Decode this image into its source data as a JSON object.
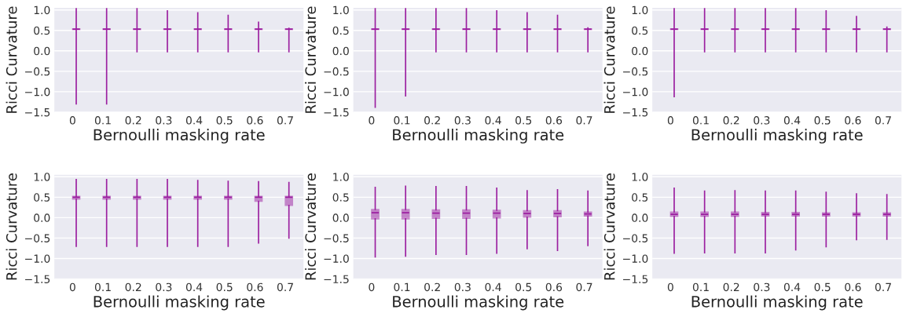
{
  "chart_data": [
    {
      "type": "box",
      "xlabel": "Bernoulli masking rate",
      "ylabel": "Ricci Curvature",
      "categories": [
        "0",
        "0.1",
        "0.2",
        "0.3",
        "0.4",
        "0.5",
        "0.6",
        "0.7"
      ],
      "color": "#9b1fa0",
      "ylim": [
        -1.5,
        1.05
      ],
      "yticks": [
        {
          "value": -1.5,
          "label": "−1.5"
        },
        {
          "value": -1.0,
          "label": "−1.0"
        },
        {
          "value": -0.5,
          "label": "−0.5"
        },
        {
          "value": 0.0,
          "label": "0.0"
        },
        {
          "value": 0.5,
          "label": "0.5"
        },
        {
          "value": 1.0,
          "label": "1.0"
        }
      ],
      "grid": "y",
      "boxes": [
        {
          "low": -1.3,
          "q1": 0.52,
          "median": 0.53,
          "q3": 0.54,
          "high": 1.03
        },
        {
          "low": -1.3,
          "q1": 0.52,
          "median": 0.53,
          "q3": 0.54,
          "high": 1.03
        },
        {
          "low": -0.02,
          "q1": 0.52,
          "median": 0.53,
          "q3": 0.54,
          "high": 1.03
        },
        {
          "low": -0.02,
          "q1": 0.52,
          "median": 0.53,
          "q3": 0.54,
          "high": 0.98
        },
        {
          "low": -0.02,
          "q1": 0.52,
          "median": 0.53,
          "q3": 0.54,
          "high": 0.93
        },
        {
          "low": -0.02,
          "q1": 0.52,
          "median": 0.53,
          "q3": 0.54,
          "high": 0.87
        },
        {
          "low": -0.02,
          "q1": 0.52,
          "median": 0.53,
          "q3": 0.54,
          "high": 0.7
        },
        {
          "low": -0.02,
          "q1": 0.52,
          "median": 0.53,
          "q3": 0.54,
          "high": 0.55
        }
      ]
    },
    {
      "type": "box",
      "xlabel": "Bernoulli masking rate",
      "ylabel": "Ricci Curvature",
      "categories": [
        "0",
        "0.1",
        "0.2",
        "0.3",
        "0.4",
        "0.5",
        "0.6",
        "0.7"
      ],
      "color": "#9b1fa0",
      "ylim": [
        -1.5,
        1.05
      ],
      "yticks": [
        {
          "value": -1.5,
          "label": "−1.5"
        },
        {
          "value": -1.0,
          "label": "−1.0"
        },
        {
          "value": -0.5,
          "label": "−0.5"
        },
        {
          "value": 0.0,
          "label": "0.0"
        },
        {
          "value": 0.5,
          "label": "0.5"
        },
        {
          "value": 1.0,
          "label": "1.0"
        }
      ],
      "grid": "y",
      "boxes": [
        {
          "low": -1.38,
          "q1": 0.52,
          "median": 0.53,
          "q3": 0.54,
          "high": 1.03
        },
        {
          "low": -1.1,
          "q1": 0.52,
          "median": 0.53,
          "q3": 0.54,
          "high": 1.03
        },
        {
          "low": -0.02,
          "q1": 0.52,
          "median": 0.53,
          "q3": 0.54,
          "high": 1.03
        },
        {
          "low": -0.02,
          "q1": 0.52,
          "median": 0.53,
          "q3": 0.54,
          "high": 1.03
        },
        {
          "low": -0.02,
          "q1": 0.52,
          "median": 0.53,
          "q3": 0.54,
          "high": 0.98
        },
        {
          "low": -0.02,
          "q1": 0.52,
          "median": 0.53,
          "q3": 0.54,
          "high": 0.93
        },
        {
          "low": -0.02,
          "q1": 0.52,
          "median": 0.53,
          "q3": 0.54,
          "high": 0.87
        },
        {
          "low": -0.02,
          "q1": 0.52,
          "median": 0.53,
          "q3": 0.54,
          "high": 0.56
        }
      ]
    },
    {
      "type": "box",
      "xlabel": "Bernoulli masking rate",
      "ylabel": "Ricci Curvature",
      "categories": [
        "0",
        "0.1",
        "0.2",
        "0.3",
        "0.4",
        "0.5",
        "0.6",
        "0.7"
      ],
      "color": "#9b1fa0",
      "ylim": [
        -1.5,
        1.05
      ],
      "yticks": [
        {
          "value": -1.5,
          "label": "−1.5"
        },
        {
          "value": -1.0,
          "label": "−1.0"
        },
        {
          "value": -0.5,
          "label": "−0.5"
        },
        {
          "value": 0.0,
          "label": "0.0"
        },
        {
          "value": 0.5,
          "label": "0.5"
        },
        {
          "value": 1.0,
          "label": "1.0"
        }
      ],
      "grid": "y",
      "boxes": [
        {
          "low": -1.12,
          "q1": 0.52,
          "median": 0.53,
          "q3": 0.54,
          "high": 1.03
        },
        {
          "low": -0.02,
          "q1": 0.52,
          "median": 0.53,
          "q3": 0.54,
          "high": 1.03
        },
        {
          "low": -0.02,
          "q1": 0.52,
          "median": 0.53,
          "q3": 0.54,
          "high": 1.03
        },
        {
          "low": -0.02,
          "q1": 0.52,
          "median": 0.53,
          "q3": 0.54,
          "high": 1.03
        },
        {
          "low": -0.02,
          "q1": 0.52,
          "median": 0.53,
          "q3": 0.54,
          "high": 1.03
        },
        {
          "low": -0.02,
          "q1": 0.52,
          "median": 0.53,
          "q3": 0.54,
          "high": 0.98
        },
        {
          "low": -0.02,
          "q1": 0.52,
          "median": 0.53,
          "q3": 0.54,
          "high": 0.84
        },
        {
          "low": -0.02,
          "q1": 0.52,
          "median": 0.53,
          "q3": 0.54,
          "high": 0.58
        }
      ]
    },
    {
      "type": "box",
      "xlabel": "Bernoulli masking rate",
      "ylabel": "Ricci Curvature",
      "categories": [
        "0",
        "0.1",
        "0.2",
        "0.3",
        "0.4",
        "0.5",
        "0.6",
        "0.7"
      ],
      "color": "#9b1fa0",
      "ylim": [
        -1.5,
        1.05
      ],
      "yticks": [
        {
          "value": -1.5,
          "label": "−1.5"
        },
        {
          "value": -1.0,
          "label": "−1.0"
        },
        {
          "value": -0.5,
          "label": "−0.5"
        },
        {
          "value": 0.0,
          "label": "0.0"
        },
        {
          "value": 0.5,
          "label": "0.5"
        },
        {
          "value": 1.0,
          "label": "1.0"
        }
      ],
      "grid": "y",
      "boxes": [
        {
          "low": -0.7,
          "q1": 0.45,
          "median": 0.5,
          "q3": 0.52,
          "high": 0.93
        },
        {
          "low": -0.7,
          "q1": 0.45,
          "median": 0.5,
          "q3": 0.52,
          "high": 0.93
        },
        {
          "low": -0.7,
          "q1": 0.45,
          "median": 0.5,
          "q3": 0.52,
          "high": 0.93
        },
        {
          "low": -0.7,
          "q1": 0.45,
          "median": 0.5,
          "q3": 0.52,
          "high": 0.93
        },
        {
          "low": -0.7,
          "q1": 0.45,
          "median": 0.5,
          "q3": 0.52,
          "high": 0.91
        },
        {
          "low": -0.7,
          "q1": 0.45,
          "median": 0.5,
          "q3": 0.52,
          "high": 0.89
        },
        {
          "low": -0.62,
          "q1": 0.4,
          "median": 0.5,
          "q3": 0.52,
          "high": 0.88
        },
        {
          "low": -0.5,
          "q1": 0.3,
          "median": 0.5,
          "q3": 0.52,
          "high": 0.86
        }
      ]
    },
    {
      "type": "box",
      "xlabel": "Bernoulli masking rate",
      "ylabel": "Ricci Curvature",
      "categories": [
        "0",
        "0.1",
        "0.2",
        "0.3",
        "0.4",
        "0.5",
        "0.6",
        "0.7"
      ],
      "color": "#9b1fa0",
      "ylim": [
        -1.5,
        1.05
      ],
      "yticks": [
        {
          "value": -1.5,
          "label": "−1.5"
        },
        {
          "value": -1.0,
          "label": "−1.0"
        },
        {
          "value": -0.5,
          "label": "−0.5"
        },
        {
          "value": 0.0,
          "label": "0.0"
        },
        {
          "value": 0.5,
          "label": "0.5"
        },
        {
          "value": 1.0,
          "label": "1.0"
        }
      ],
      "grid": "y",
      "boxes": [
        {
          "low": -0.96,
          "q1": -0.03,
          "median": 0.12,
          "q3": 0.2,
          "high": 0.74
        },
        {
          "low": -0.94,
          "q1": -0.03,
          "median": 0.12,
          "q3": 0.2,
          "high": 0.77
        },
        {
          "low": -0.9,
          "q1": -0.02,
          "median": 0.11,
          "q3": 0.19,
          "high": 0.76
        },
        {
          "low": -0.9,
          "q1": -0.02,
          "median": 0.11,
          "q3": 0.19,
          "high": 0.76
        },
        {
          "low": -0.87,
          "q1": -0.01,
          "median": 0.11,
          "q3": 0.18,
          "high": 0.72
        },
        {
          "low": -0.76,
          "q1": 0.01,
          "median": 0.1,
          "q3": 0.17,
          "high": 0.66
        },
        {
          "low": -0.8,
          "q1": 0.02,
          "median": 0.1,
          "q3": 0.17,
          "high": 0.68
        },
        {
          "low": -0.68,
          "q1": 0.04,
          "median": 0.09,
          "q3": 0.14,
          "high": 0.65
        }
      ]
    },
    {
      "type": "box",
      "xlabel": "Bernoulli masking rate",
      "ylabel": "Ricci Curvature",
      "categories": [
        "0",
        "0.1",
        "0.2",
        "0.3",
        "0.4",
        "0.5",
        "0.6",
        "0.7"
      ],
      "color": "#9b1fa0",
      "ylim": [
        -1.5,
        1.05
      ],
      "yticks": [
        {
          "value": -1.5,
          "label": "−1.5"
        },
        {
          "value": -1.0,
          "label": "−1.0"
        },
        {
          "value": -0.5,
          "label": "−0.5"
        },
        {
          "value": 0.0,
          "label": "0.0"
        },
        {
          "value": 0.5,
          "label": "0.5"
        },
        {
          "value": 1.0,
          "label": "1.0"
        }
      ],
      "grid": "y",
      "boxes": [
        {
          "low": -0.87,
          "q1": 0.03,
          "median": 0.08,
          "q3": 0.14,
          "high": 0.72
        },
        {
          "low": -0.86,
          "q1": 0.03,
          "median": 0.08,
          "q3": 0.14,
          "high": 0.65
        },
        {
          "low": -0.86,
          "q1": 0.03,
          "median": 0.08,
          "q3": 0.14,
          "high": 0.66
        },
        {
          "low": -0.86,
          "q1": 0.04,
          "median": 0.08,
          "q3": 0.13,
          "high": 0.65
        },
        {
          "low": -0.79,
          "q1": 0.04,
          "median": 0.08,
          "q3": 0.13,
          "high": 0.65
        },
        {
          "low": -0.71,
          "q1": 0.04,
          "median": 0.08,
          "q3": 0.12,
          "high": 0.62
        },
        {
          "low": -0.54,
          "q1": 0.04,
          "median": 0.08,
          "q3": 0.12,
          "high": 0.58
        },
        {
          "low": -0.53,
          "q1": 0.04,
          "median": 0.08,
          "q3": 0.12,
          "high": 0.56
        }
      ]
    }
  ]
}
